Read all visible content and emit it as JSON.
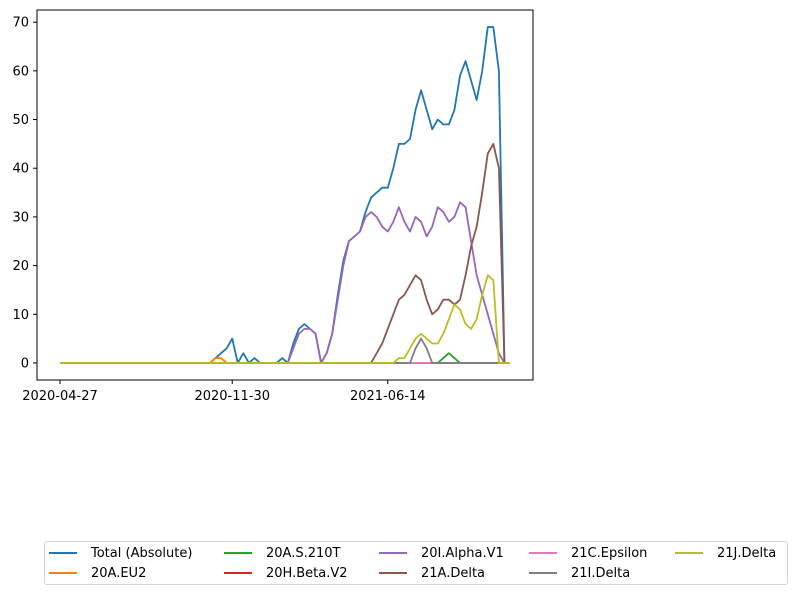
{
  "chart_data": {
    "type": "line",
    "title": "",
    "xlabel": "",
    "ylabel": "",
    "ylim": [
      -3.5,
      72.5
    ],
    "yticks": [
      0,
      10,
      20,
      30,
      40,
      50,
      60,
      70
    ],
    "x_tick_labels": [
      {
        "label": "2020-04-27",
        "index": 0
      },
      {
        "label": "2020-11-30",
        "index": 31
      },
      {
        "label": "2021-06-14",
        "index": 59
      }
    ],
    "x_points": 82,
    "legend_position": "below",
    "grid": false,
    "series": [
      {
        "name": "Total (Absolute)",
        "color": "#1f77b4",
        "values": [
          0,
          0,
          0,
          0,
          0,
          0,
          0,
          0,
          0,
          0,
          0,
          0,
          0,
          0,
          0,
          0,
          0,
          0,
          0,
          0,
          0,
          0,
          0,
          0,
          0,
          0,
          0,
          0,
          1,
          2,
          3,
          5,
          0,
          2,
          0,
          1,
          0,
          0,
          0,
          0,
          1,
          0,
          4,
          7,
          8,
          7,
          6,
          0,
          2,
          6,
          14,
          21,
          25,
          26,
          27,
          31,
          34,
          35,
          36,
          36,
          40,
          45,
          45,
          46,
          52,
          56,
          52,
          48,
          50,
          49,
          49,
          52,
          59,
          62,
          58,
          54,
          60,
          69,
          69,
          60,
          0,
          0
        ]
      },
      {
        "name": "20A.EU2",
        "color": "#ff7f0e",
        "values": [
          0,
          0,
          0,
          0,
          0,
          0,
          0,
          0,
          0,
          0,
          0,
          0,
          0,
          0,
          0,
          0,
          0,
          0,
          0,
          0,
          0,
          0,
          0,
          0,
          0,
          0,
          0,
          0,
          1,
          1,
          0,
          0,
          0,
          0,
          0,
          0,
          0,
          0,
          0,
          0,
          0,
          0,
          0,
          0,
          0,
          0,
          0,
          0,
          0,
          0,
          0,
          0,
          0,
          0,
          0,
          0,
          0,
          0,
          0,
          0,
          0,
          0,
          0,
          0,
          0,
          0,
          0,
          0,
          0,
          0,
          0,
          0,
          0,
          0,
          0,
          0,
          0,
          0,
          0,
          0,
          0,
          0
        ]
      },
      {
        "name": "20A.S.210T",
        "color": "#2ca02c",
        "values": [
          0,
          0,
          0,
          0,
          0,
          0,
          0,
          0,
          0,
          0,
          0,
          0,
          0,
          0,
          0,
          0,
          0,
          0,
          0,
          0,
          0,
          0,
          0,
          0,
          0,
          0,
          0,
          0,
          0,
          0,
          0,
          0,
          0,
          0,
          0,
          0,
          0,
          0,
          0,
          0,
          0,
          0,
          0,
          0,
          0,
          0,
          0,
          0,
          0,
          0,
          0,
          0,
          0,
          0,
          0,
          0,
          0,
          0,
          0,
          0,
          0,
          0,
          0,
          0,
          0,
          0,
          0,
          0,
          0,
          1,
          2,
          1,
          0,
          0,
          0,
          0,
          0,
          0,
          0,
          0,
          0,
          0
        ]
      },
      {
        "name": "20H.Beta.V2",
        "color": "#d62728",
        "values": [
          0,
          0,
          0,
          0,
          0,
          0,
          0,
          0,
          0,
          0,
          0,
          0,
          0,
          0,
          0,
          0,
          0,
          0,
          0,
          0,
          0,
          0,
          0,
          0,
          0,
          0,
          0,
          0,
          0,
          0,
          0,
          0,
          0,
          0,
          0,
          0,
          0,
          0,
          0,
          0,
          0,
          0,
          0,
          0,
          0,
          0,
          0,
          0,
          0,
          0,
          0,
          0,
          0,
          0,
          0,
          0,
          0,
          0,
          0,
          0,
          0,
          0,
          0,
          0,
          0,
          0,
          0,
          0,
          0,
          0,
          0,
          0,
          0,
          0,
          0,
          0,
          0,
          0,
          0,
          0,
          0,
          0
        ]
      },
      {
        "name": "20I.Alpha.V1",
        "color": "#9467bd",
        "values": [
          0,
          0,
          0,
          0,
          0,
          0,
          0,
          0,
          0,
          0,
          0,
          0,
          0,
          0,
          0,
          0,
          0,
          0,
          0,
          0,
          0,
          0,
          0,
          0,
          0,
          0,
          0,
          0,
          0,
          0,
          0,
          0,
          0,
          0,
          0,
          0,
          0,
          0,
          0,
          0,
          0,
          0,
          3,
          6,
          7,
          7,
          6,
          0,
          2,
          6,
          13,
          20,
          25,
          26,
          27,
          30,
          31,
          30,
          28,
          27,
          29,
          32,
          29,
          27,
          30,
          29,
          26,
          28,
          32,
          31,
          29,
          30,
          33,
          32,
          25,
          18,
          14,
          10,
          6,
          2,
          0,
          0
        ]
      },
      {
        "name": "21A.Delta",
        "color": "#8c564b",
        "values": [
          0,
          0,
          0,
          0,
          0,
          0,
          0,
          0,
          0,
          0,
          0,
          0,
          0,
          0,
          0,
          0,
          0,
          0,
          0,
          0,
          0,
          0,
          0,
          0,
          0,
          0,
          0,
          0,
          0,
          0,
          0,
          0,
          0,
          0,
          0,
          0,
          0,
          0,
          0,
          0,
          0,
          0,
          0,
          0,
          0,
          0,
          0,
          0,
          0,
          0,
          0,
          0,
          0,
          0,
          0,
          0,
          0,
          2,
          4,
          7,
          10,
          13,
          14,
          16,
          18,
          17,
          13,
          10,
          11,
          13,
          13,
          12,
          13,
          18,
          24,
          28,
          35,
          43,
          45,
          40,
          0,
          0
        ]
      },
      {
        "name": "21C.Epsilon",
        "color": "#e377c2",
        "values": [
          0,
          0,
          0,
          0,
          0,
          0,
          0,
          0,
          0,
          0,
          0,
          0,
          0,
          0,
          0,
          0,
          0,
          0,
          0,
          0,
          0,
          0,
          0,
          0,
          0,
          0,
          0,
          0,
          0,
          0,
          0,
          0,
          0,
          0,
          0,
          0,
          0,
          0,
          0,
          0,
          0,
          0,
          0,
          0,
          0,
          0,
          0,
          0,
          0,
          0,
          0,
          0,
          0,
          0,
          0,
          0,
          0,
          0,
          0,
          0,
          0,
          0,
          0,
          0,
          0,
          0,
          0,
          0,
          0,
          0,
          0,
          0,
          0,
          0,
          0,
          0,
          0,
          0,
          0,
          0,
          0,
          0
        ]
      },
      {
        "name": "21I.Delta",
        "color": "#7f7f7f",
        "values": [
          0,
          0,
          0,
          0,
          0,
          0,
          0,
          0,
          0,
          0,
          0,
          0,
          0,
          0,
          0,
          0,
          0,
          0,
          0,
          0,
          0,
          0,
          0,
          0,
          0,
          0,
          0,
          0,
          0,
          0,
          0,
          0,
          0,
          0,
          0,
          0,
          0,
          0,
          0,
          0,
          0,
          0,
          0,
          0,
          0,
          0,
          0,
          0,
          0,
          0,
          0,
          0,
          0,
          0,
          0,
          0,
          0,
          0,
          0,
          0,
          0,
          0,
          0,
          0,
          3,
          5,
          3,
          0,
          0,
          0,
          0,
          0,
          0,
          0,
          0,
          0,
          0,
          0,
          0,
          0,
          0,
          0
        ]
      },
      {
        "name": "21J.Delta",
        "color": "#bcbd22",
        "values": [
          0,
          0,
          0,
          0,
          0,
          0,
          0,
          0,
          0,
          0,
          0,
          0,
          0,
          0,
          0,
          0,
          0,
          0,
          0,
          0,
          0,
          0,
          0,
          0,
          0,
          0,
          0,
          0,
          0,
          0,
          0,
          0,
          0,
          0,
          0,
          0,
          0,
          0,
          0,
          0,
          0,
          0,
          0,
          0,
          0,
          0,
          0,
          0,
          0,
          0,
          0,
          0,
          0,
          0,
          0,
          0,
          0,
          0,
          0,
          0,
          0,
          1,
          1,
          3,
          5,
          6,
          5,
          4,
          4,
          6,
          9,
          12,
          11,
          8,
          7,
          9,
          14,
          18,
          17,
          0,
          0,
          0
        ]
      }
    ]
  }
}
